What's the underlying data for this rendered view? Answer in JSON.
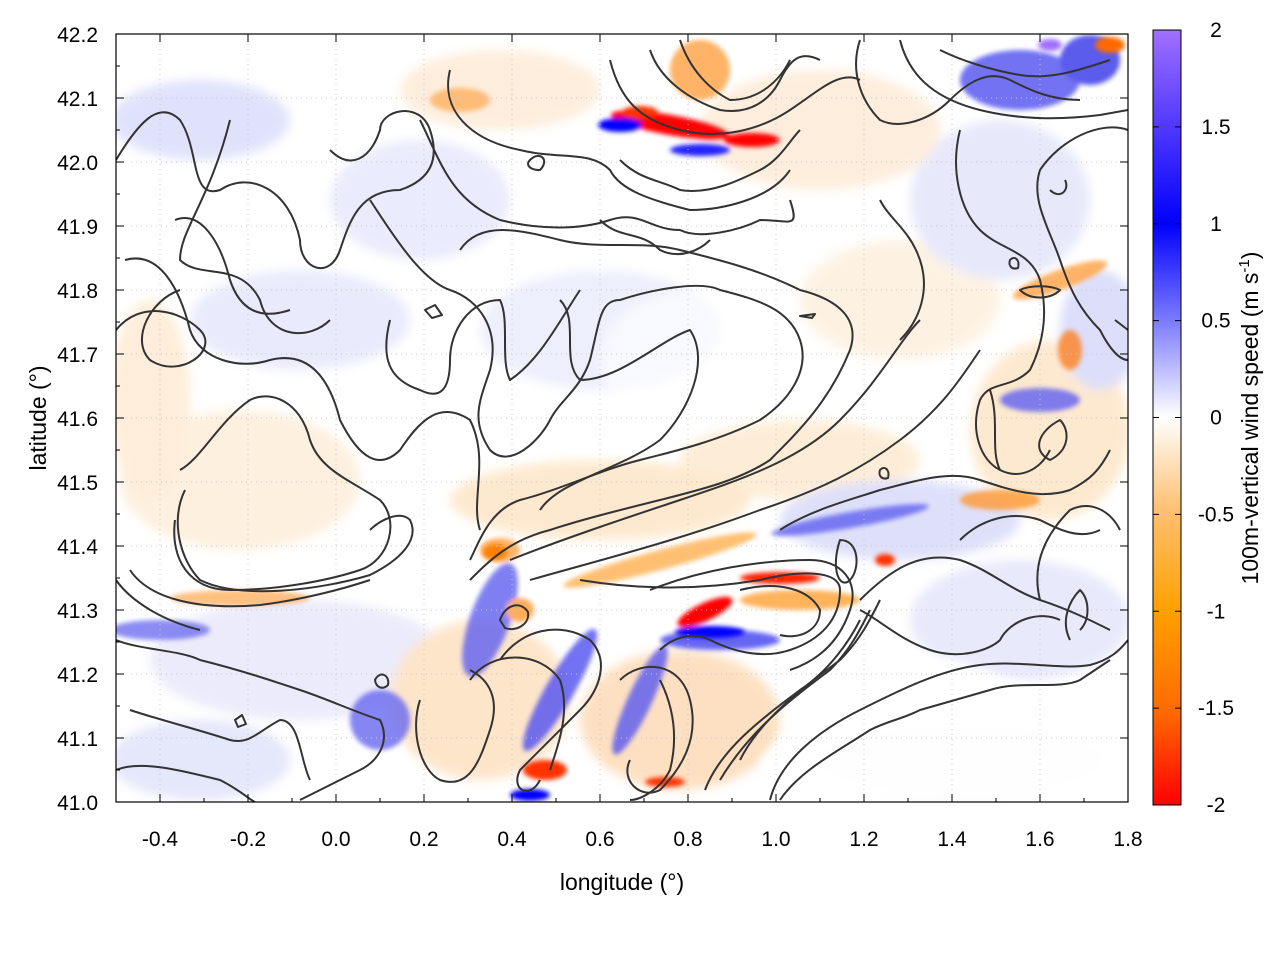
{
  "chart_data": {
    "type": "heatmap",
    "title": "",
    "xlabel": "longitude (°)",
    "ylabel": "latitude (°)",
    "colorbar": {
      "label": "100m-vertical wind speed (m s",
      "label_superscript": "-1",
      "label_suffix": ")",
      "range": [
        -2,
        2
      ],
      "ticks": [
        "2",
        "1.5",
        "1",
        "0.5",
        "0",
        "-0.5",
        "-1",
        "-1.5",
        "-2"
      ],
      "colors": {
        "min": "#ff0000",
        "low": "#ff8c00",
        "low_mid": "#ffa000",
        "zero": "#ffffff",
        "high_mid": "#8080ff",
        "high": "#0000ff",
        "max": "#a070ff"
      }
    },
    "xlim": [
      -0.5,
      1.8
    ],
    "ylim": [
      41.0,
      42.2
    ],
    "x_ticks": [
      "-0.4",
      "-0.2",
      "0.0",
      "0.2",
      "0.4",
      "0.6",
      "0.8",
      "1.0",
      "1.2",
      "1.4",
      "1.6",
      "1.8"
    ],
    "y_ticks": [
      "42.2",
      "42.1",
      "42.0",
      "41.9",
      "41.8",
      "41.7",
      "41.6",
      "41.5",
      "41.4",
      "41.3",
      "41.2",
      "41.1",
      "41.0"
    ],
    "grid": true,
    "contour_color": "#333333",
    "features": [
      {
        "type": "downdraft",
        "lon": 0.82,
        "lat": 42.05,
        "value": -2.0
      },
      {
        "type": "downdraft",
        "lon": 0.95,
        "lat": 42.03,
        "value": -1.9
      },
      {
        "type": "downdraft",
        "lon": 0.83,
        "lat": 41.29,
        "value": -2.0
      },
      {
        "type": "downdraft",
        "lon": 0.98,
        "lat": 41.34,
        "value": -1.6
      },
      {
        "type": "downdraft",
        "lon": 0.48,
        "lat": 41.04,
        "value": -1.5
      },
      {
        "type": "downdraft",
        "lon": -0.2,
        "lat": 41.31,
        "value": -1.0
      },
      {
        "type": "downdraft",
        "lon": 1.67,
        "lat": 41.72,
        "value": -1.2
      },
      {
        "type": "updraft",
        "lon": 0.72,
        "lat": 42.06,
        "value": 1.5
      },
      {
        "type": "updraft",
        "lon": 0.85,
        "lat": 41.25,
        "value": 1.6
      },
      {
        "type": "updraft",
        "lon": 1.6,
        "lat": 42.15,
        "value": 1.7
      },
      {
        "type": "updraft",
        "lon": 0.45,
        "lat": 41.22,
        "value": 1.2
      },
      {
        "type": "updraft",
        "lon": 1.35,
        "lat": 41.45,
        "value": 1.0
      }
    ]
  }
}
